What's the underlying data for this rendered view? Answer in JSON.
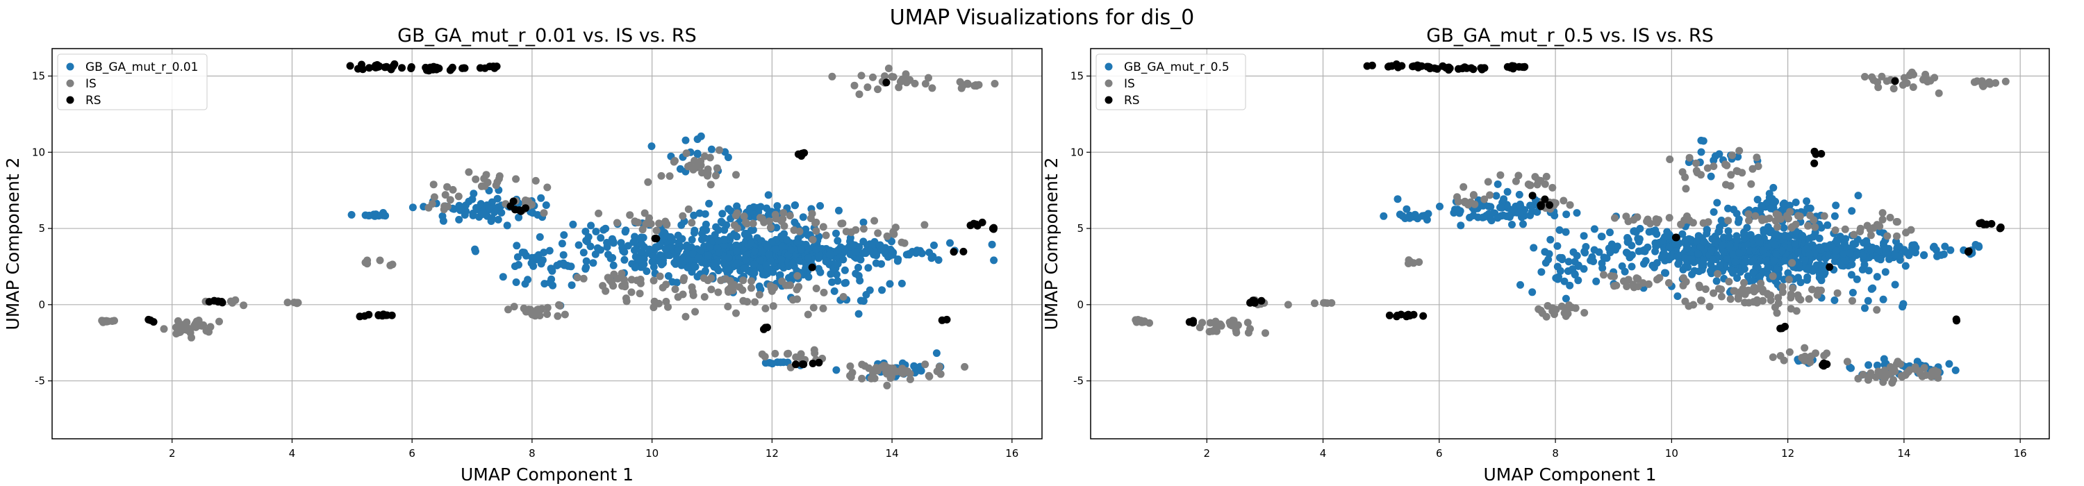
{
  "suptitle": "UMAP Visualizations for dis_0",
  "colors": {
    "gen": "#1f77b4",
    "IS": "#808080",
    "RS": "#000000"
  },
  "chart_data": [
    {
      "type": "scatter",
      "title": "GB_GA_mut_r_0.01 vs. IS vs. RS",
      "xlabel": "UMAP Component 1",
      "ylabel": "UMAP Component 2",
      "xlim": [
        0.0,
        16.5
      ],
      "ylim": [
        -8.8,
        16.8
      ],
      "xticks": [
        2,
        4,
        6,
        8,
        10,
        12,
        14,
        16
      ],
      "yticks": [
        -5,
        0,
        5,
        10,
        15
      ],
      "grid": true,
      "legend_position": "upper-left",
      "legend": [
        "GB_GA_mut_r_0.01",
        "IS",
        "RS"
      ],
      "series": [
        {
          "name": "GB_GA_mut_r_0.01",
          "color": "#1f77b4",
          "clusters": [
            {
              "cx": 11.6,
              "cy": 3.3,
              "sx": 0.9,
              "sy": 0.9,
              "n": 520
            },
            {
              "cx": 13.3,
              "cy": 3.4,
              "sx": 0.9,
              "sy": 0.3,
              "n": 130
            },
            {
              "cx": 9.8,
              "cy": 3.8,
              "sx": 0.8,
              "sy": 0.8,
              "n": 90
            },
            {
              "cx": 7.2,
              "cy": 6.3,
              "sx": 0.45,
              "sy": 0.45,
              "n": 70
            },
            {
              "cx": 11.8,
              "cy": 6.1,
              "sx": 0.5,
              "sy": 0.4,
              "n": 50
            },
            {
              "cx": 5.4,
              "cy": 5.9,
              "sx": 0.15,
              "sy": 0.1,
              "n": 12
            },
            {
              "cx": 8.3,
              "cy": 2.8,
              "sx": 0.5,
              "sy": 1.2,
              "n": 40
            },
            {
              "cx": 10.7,
              "cy": 9.8,
              "sx": 0.3,
              "sy": 0.6,
              "n": 15
            },
            {
              "cx": 14.1,
              "cy": -4.3,
              "sx": 0.4,
              "sy": 0.3,
              "n": 30
            },
            {
              "cx": 12.2,
              "cy": -3.8,
              "sx": 0.2,
              "sy": 0.1,
              "n": 8
            },
            {
              "cx": 13.5,
              "cy": 1.0,
              "sx": 0.3,
              "sy": 1.0,
              "n": 15
            }
          ]
        },
        {
          "name": "IS",
          "color": "#808080",
          "clusters": [
            {
              "cx": 0.9,
              "cy": -1.1,
              "sx": 0.06,
              "sy": 0.05,
              "n": 12
            },
            {
              "cx": 2.3,
              "cy": -1.5,
              "sx": 0.25,
              "sy": 0.3,
              "n": 30
            },
            {
              "cx": 3.0,
              "cy": 0.2,
              "sx": 0.2,
              "sy": 0.1,
              "n": 6
            },
            {
              "cx": 4.0,
              "cy": 0.1,
              "sx": 0.1,
              "sy": 0.05,
              "n": 5
            },
            {
              "cx": 5.5,
              "cy": 2.8,
              "sx": 0.15,
              "sy": 0.1,
              "n": 6
            },
            {
              "cx": 6.5,
              "cy": 7.0,
              "sx": 0.15,
              "sy": 0.4,
              "n": 12
            },
            {
              "cx": 7.5,
              "cy": 8.2,
              "sx": 0.3,
              "sy": 0.3,
              "n": 14
            },
            {
              "cx": 8.0,
              "cy": 6.6,
              "sx": 0.2,
              "sy": 0.2,
              "n": 10
            },
            {
              "cx": 8.1,
              "cy": -0.4,
              "sx": 0.25,
              "sy": 0.2,
              "n": 20
            },
            {
              "cx": 9.3,
              "cy": 1.5,
              "sx": 0.4,
              "sy": 0.3,
              "n": 20
            },
            {
              "cx": 10.7,
              "cy": 8.9,
              "sx": 0.35,
              "sy": 0.6,
              "n": 25
            },
            {
              "cx": 11.3,
              "cy": 0.8,
              "sx": 0.8,
              "sy": 0.7,
              "n": 70
            },
            {
              "cx": 12.0,
              "cy": 5.6,
              "sx": 0.4,
              "sy": 0.3,
              "n": 25
            },
            {
              "cx": 12.3,
              "cy": -3.5,
              "sx": 0.3,
              "sy": 0.3,
              "n": 15
            },
            {
              "cx": 14.0,
              "cy": -4.4,
              "sx": 0.4,
              "sy": 0.3,
              "n": 45
            },
            {
              "cx": 14.1,
              "cy": 14.6,
              "sx": 0.35,
              "sy": 0.35,
              "n": 25
            },
            {
              "cx": 15.4,
              "cy": 14.5,
              "sx": 0.2,
              "sy": 0.1,
              "n": 10
            },
            {
              "cx": 13.5,
              "cy": 5.0,
              "sx": 0.5,
              "sy": 0.4,
              "n": 20
            },
            {
              "cx": 10.0,
              "cy": 5.5,
              "sx": 0.4,
              "sy": 0.3,
              "n": 20
            }
          ]
        },
        {
          "name": "RS",
          "color": "#000000",
          "clusters": [
            {
              "cx": 1.7,
              "cy": -1.1,
              "sx": 0.05,
              "sy": 0.05,
              "n": 3
            },
            {
              "cx": 2.8,
              "cy": 0.2,
              "sx": 0.1,
              "sy": 0.05,
              "n": 6
            },
            {
              "cx": 5.4,
              "cy": 15.6,
              "sx": 0.3,
              "sy": 0.07,
              "n": 20
            },
            {
              "cx": 6.3,
              "cy": 15.5,
              "sx": 0.3,
              "sy": 0.07,
              "n": 18
            },
            {
              "cx": 7.3,
              "cy": 15.6,
              "sx": 0.1,
              "sy": 0.05,
              "n": 8
            },
            {
              "cx": 5.4,
              "cy": -0.7,
              "sx": 0.2,
              "sy": 0.05,
              "n": 10
            },
            {
              "cx": 7.8,
              "cy": 6.6,
              "sx": 0.15,
              "sy": 0.3,
              "n": 6
            },
            {
              "cx": 10.1,
              "cy": 4.4,
              "sx": 0.05,
              "sy": 0.05,
              "n": 2
            },
            {
              "cx": 12.5,
              "cy": 9.9,
              "sx": 0.05,
              "sy": 0.2,
              "n": 4
            },
            {
              "cx": 12.6,
              "cy": -3.9,
              "sx": 0.1,
              "sy": 0.05,
              "n": 5
            },
            {
              "cx": 11.9,
              "cy": -1.5,
              "sx": 0.05,
              "sy": 0.05,
              "n": 3
            },
            {
              "cx": 12.7,
              "cy": 2.5,
              "sx": 0.03,
              "sy": 0.03,
              "n": 1
            },
            {
              "cx": 13.9,
              "cy": 14.6,
              "sx": 0.03,
              "sy": 0.03,
              "n": 1
            },
            {
              "cx": 14.9,
              "cy": -1.0,
              "sx": 0.03,
              "sy": 0.03,
              "n": 2
            },
            {
              "cx": 15.1,
              "cy": 3.5,
              "sx": 0.05,
              "sy": 0.03,
              "n": 2
            },
            {
              "cx": 15.4,
              "cy": 5.3,
              "sx": 0.1,
              "sy": 0.05,
              "n": 5
            },
            {
              "cx": 15.7,
              "cy": 5.0,
              "sx": 0.05,
              "sy": 0.05,
              "n": 3
            }
          ]
        }
      ]
    },
    {
      "type": "scatter",
      "title": "GB_GA_mut_r_0.5 vs. IS vs. RS",
      "xlabel": "UMAP Component 1",
      "ylabel": "UMAP Component 2",
      "xlim": [
        0.0,
        16.5
      ],
      "ylim": [
        -8.8,
        16.8
      ],
      "xticks": [
        2,
        4,
        6,
        8,
        10,
        12,
        14,
        16
      ],
      "yticks": [
        -5,
        0,
        5,
        10,
        15
      ],
      "grid": true,
      "legend_position": "upper-left",
      "legend": [
        "GB_GA_mut_r_0.5",
        "IS",
        "RS"
      ],
      "series": [
        {
          "name": "GB_GA_mut_r_0.5",
          "color": "#1f77b4",
          "clusters": [
            {
              "cx": 11.6,
              "cy": 3.4,
              "sx": 0.9,
              "sy": 0.9,
              "n": 520
            },
            {
              "cx": 13.3,
              "cy": 3.5,
              "sx": 0.9,
              "sy": 0.3,
              "n": 130
            },
            {
              "cx": 9.7,
              "cy": 3.9,
              "sx": 0.9,
              "sy": 0.8,
              "n": 100
            },
            {
              "cx": 7.0,
              "cy": 6.2,
              "sx": 0.5,
              "sy": 0.5,
              "n": 80
            },
            {
              "cx": 11.9,
              "cy": 6.3,
              "sx": 0.5,
              "sy": 0.5,
              "n": 60
            },
            {
              "cx": 5.6,
              "cy": 5.8,
              "sx": 0.2,
              "sy": 0.15,
              "n": 14
            },
            {
              "cx": 8.2,
              "cy": 2.5,
              "sx": 0.5,
              "sy": 1.2,
              "n": 40
            },
            {
              "cx": 10.8,
              "cy": 9.6,
              "sx": 0.3,
              "sy": 0.5,
              "n": 15
            },
            {
              "cx": 14.0,
              "cy": -4.2,
              "sx": 0.4,
              "sy": 0.3,
              "n": 35
            },
            {
              "cx": 12.3,
              "cy": -3.7,
              "sx": 0.2,
              "sy": 0.1,
              "n": 8
            },
            {
              "cx": 13.5,
              "cy": 1.0,
              "sx": 0.3,
              "sy": 1.0,
              "n": 15
            }
          ]
        },
        {
          "name": "IS",
          "color": "#808080",
          "clusters": [
            {
              "cx": 0.9,
              "cy": -1.1,
              "sx": 0.06,
              "sy": 0.05,
              "n": 12
            },
            {
              "cx": 2.3,
              "cy": -1.5,
              "sx": 0.25,
              "sy": 0.3,
              "n": 30
            },
            {
              "cx": 3.0,
              "cy": 0.2,
              "sx": 0.2,
              "sy": 0.1,
              "n": 6
            },
            {
              "cx": 4.0,
              "cy": 0.1,
              "sx": 0.1,
              "sy": 0.05,
              "n": 5
            },
            {
              "cx": 5.5,
              "cy": 2.8,
              "sx": 0.15,
              "sy": 0.1,
              "n": 6
            },
            {
              "cx": 6.5,
              "cy": 7.0,
              "sx": 0.15,
              "sy": 0.4,
              "n": 12
            },
            {
              "cx": 7.5,
              "cy": 8.2,
              "sx": 0.3,
              "sy": 0.3,
              "n": 14
            },
            {
              "cx": 8.0,
              "cy": 6.6,
              "sx": 0.2,
              "sy": 0.2,
              "n": 10
            },
            {
              "cx": 8.1,
              "cy": -0.4,
              "sx": 0.25,
              "sy": 0.2,
              "n": 20
            },
            {
              "cx": 9.3,
              "cy": 1.5,
              "sx": 0.4,
              "sy": 0.3,
              "n": 20
            },
            {
              "cx": 10.7,
              "cy": 8.9,
              "sx": 0.35,
              "sy": 0.6,
              "n": 25
            },
            {
              "cx": 11.3,
              "cy": 0.8,
              "sx": 0.8,
              "sy": 0.7,
              "n": 70
            },
            {
              "cx": 12.0,
              "cy": 5.6,
              "sx": 0.4,
              "sy": 0.3,
              "n": 25
            },
            {
              "cx": 12.3,
              "cy": -3.5,
              "sx": 0.3,
              "sy": 0.3,
              "n": 15
            },
            {
              "cx": 14.0,
              "cy": -4.5,
              "sx": 0.4,
              "sy": 0.3,
              "n": 45
            },
            {
              "cx": 14.1,
              "cy": 14.6,
              "sx": 0.35,
              "sy": 0.35,
              "n": 25
            },
            {
              "cx": 15.4,
              "cy": 14.5,
              "sx": 0.2,
              "sy": 0.1,
              "n": 10
            },
            {
              "cx": 13.5,
              "cy": 5.0,
              "sx": 0.5,
              "sy": 0.4,
              "n": 20
            },
            {
              "cx": 10.0,
              "cy": 5.5,
              "sx": 0.4,
              "sy": 0.3,
              "n": 20
            }
          ]
        },
        {
          "name": "RS",
          "color": "#000000",
          "clusters": [
            {
              "cx": 1.7,
              "cy": -1.1,
              "sx": 0.05,
              "sy": 0.05,
              "n": 3
            },
            {
              "cx": 2.8,
              "cy": 0.2,
              "sx": 0.1,
              "sy": 0.05,
              "n": 6
            },
            {
              "cx": 5.4,
              "cy": 15.6,
              "sx": 0.3,
              "sy": 0.07,
              "n": 20
            },
            {
              "cx": 6.3,
              "cy": 15.5,
              "sx": 0.3,
              "sy": 0.07,
              "n": 18
            },
            {
              "cx": 7.3,
              "cy": 15.6,
              "sx": 0.1,
              "sy": 0.05,
              "n": 8
            },
            {
              "cx": 5.4,
              "cy": -0.7,
              "sx": 0.2,
              "sy": 0.05,
              "n": 10
            },
            {
              "cx": 7.8,
              "cy": 6.6,
              "sx": 0.15,
              "sy": 0.3,
              "n": 6
            },
            {
              "cx": 10.1,
              "cy": 4.4,
              "sx": 0.05,
              "sy": 0.05,
              "n": 2
            },
            {
              "cx": 12.5,
              "cy": 9.9,
              "sx": 0.05,
              "sy": 0.2,
              "n": 4
            },
            {
              "cx": 12.6,
              "cy": -3.9,
              "sx": 0.1,
              "sy": 0.05,
              "n": 5
            },
            {
              "cx": 11.9,
              "cy": -1.5,
              "sx": 0.05,
              "sy": 0.05,
              "n": 3
            },
            {
              "cx": 12.7,
              "cy": 2.5,
              "sx": 0.03,
              "sy": 0.03,
              "n": 1
            },
            {
              "cx": 13.9,
              "cy": 14.6,
              "sx": 0.03,
              "sy": 0.03,
              "n": 1
            },
            {
              "cx": 14.9,
              "cy": -1.0,
              "sx": 0.03,
              "sy": 0.03,
              "n": 2
            },
            {
              "cx": 15.1,
              "cy": 3.5,
              "sx": 0.05,
              "sy": 0.03,
              "n": 2
            },
            {
              "cx": 15.4,
              "cy": 5.3,
              "sx": 0.1,
              "sy": 0.05,
              "n": 5
            },
            {
              "cx": 15.7,
              "cy": 5.0,
              "sx": 0.05,
              "sy": 0.05,
              "n": 3
            }
          ]
        }
      ]
    }
  ]
}
